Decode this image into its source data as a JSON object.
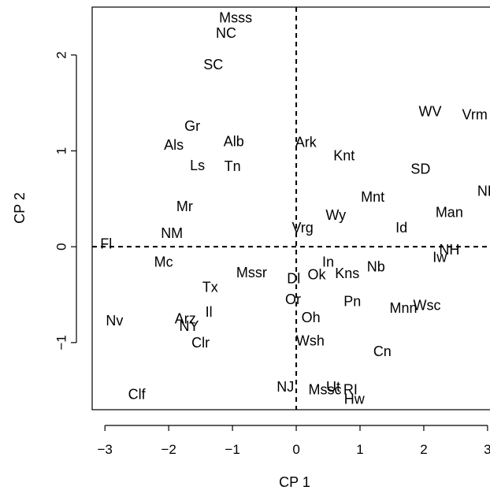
{
  "chart_data": {
    "type": "scatter",
    "title": "",
    "xlabel": "CP 1",
    "ylabel": "CP 2",
    "xlim": [
      -3.2,
      3.1
    ],
    "ylim": [
      -1.7,
      2.5
    ],
    "xticks": [
      -3,
      -2,
      -1,
      0,
      1,
      2,
      3
    ],
    "xtick_labels": [
      "−3",
      "−2",
      "−1",
      "0",
      "1",
      "2",
      "3"
    ],
    "yticks": [
      -1,
      0,
      1,
      2
    ],
    "ytick_labels": [
      "−1",
      "0",
      "1",
      "2"
    ],
    "reference_lines": {
      "x": 0,
      "y": 0,
      "style": "dashed"
    },
    "grid": false,
    "legend": "none",
    "points": [
      {
        "label": "Msss",
        "x": -0.95,
        "y": 2.39
      },
      {
        "label": "NC",
        "x": -1.1,
        "y": 2.23
      },
      {
        "label": "SC",
        "x": -1.3,
        "y": 1.9
      },
      {
        "label": "Gr",
        "x": -1.63,
        "y": 1.26
      },
      {
        "label": "Als",
        "x": -1.92,
        "y": 1.06
      },
      {
        "label": "Alb",
        "x": -0.98,
        "y": 1.1
      },
      {
        "label": "Ls",
        "x": -1.55,
        "y": 0.85
      },
      {
        "label": "Tn",
        "x": -1.0,
        "y": 0.84
      },
      {
        "label": "Ark",
        "x": 0.15,
        "y": 1.09
      },
      {
        "label": "Knt",
        "x": 0.75,
        "y": 0.95
      },
      {
        "label": "WV",
        "x": 2.1,
        "y": 1.41
      },
      {
        "label": "Vrm",
        "x": 2.8,
        "y": 1.38
      },
      {
        "label": "SD",
        "x": 1.95,
        "y": 0.81
      },
      {
        "label": "ND",
        "x": 3.0,
        "y": 0.58
      },
      {
        "label": "Mnt",
        "x": 1.2,
        "y": 0.52
      },
      {
        "label": "Man",
        "x": 2.4,
        "y": 0.36
      },
      {
        "label": "Mr",
        "x": -1.75,
        "y": 0.42
      },
      {
        "label": "Wy",
        "x": 0.62,
        "y": 0.33
      },
      {
        "label": "Vrg",
        "x": 0.1,
        "y": 0.2
      },
      {
        "label": "Id",
        "x": 1.65,
        "y": 0.2
      },
      {
        "label": "NM",
        "x": -1.95,
        "y": 0.14
      },
      {
        "label": "Fl",
        "x": -2.98,
        "y": 0.03
      },
      {
        "label": "NH",
        "x": 2.4,
        "y": -0.03
      },
      {
        "label": "Iw",
        "x": 2.25,
        "y": -0.11
      },
      {
        "label": "Mc",
        "x": -2.08,
        "y": -0.16
      },
      {
        "label": "In",
        "x": 0.5,
        "y": -0.16
      },
      {
        "label": "Nb",
        "x": 1.25,
        "y": -0.21
      },
      {
        "label": "Mssr",
        "x": -0.7,
        "y": -0.27
      },
      {
        "label": "Ok",
        "x": 0.32,
        "y": -0.29
      },
      {
        "label": "Kns",
        "x": 0.8,
        "y": -0.28
      },
      {
        "label": "Dl",
        "x": -0.04,
        "y": -0.33
      },
      {
        "label": "Tx",
        "x": -1.35,
        "y": -0.42
      },
      {
        "label": "Or",
        "x": -0.05,
        "y": -0.55
      },
      {
        "label": "Pn",
        "x": 0.88,
        "y": -0.57
      },
      {
        "label": "Mnn",
        "x": 1.68,
        "y": -0.64
      },
      {
        "label": "Wsc",
        "x": 2.05,
        "y": -0.61
      },
      {
        "label": "Il",
        "x": -1.37,
        "y": -0.68
      },
      {
        "label": "Nv",
        "x": -2.85,
        "y": -0.77
      },
      {
        "label": "Arz",
        "x": -1.74,
        "y": -0.75
      },
      {
        "label": "NY",
        "x": -1.68,
        "y": -0.83
      },
      {
        "label": "Oh",
        "x": 0.23,
        "y": -0.74
      },
      {
        "label": "Clr",
        "x": -1.5,
        "y": -1.0
      },
      {
        "label": "Wsh",
        "x": 0.22,
        "y": -0.98
      },
      {
        "label": "Cn",
        "x": 1.35,
        "y": -1.09
      },
      {
        "label": "Clf",
        "x": -2.5,
        "y": -1.54
      },
      {
        "label": "NJ",
        "x": -0.17,
        "y": -1.46
      },
      {
        "label": "Mssc",
        "x": 0.45,
        "y": -1.49
      },
      {
        "label": "Ut",
        "x": 0.58,
        "y": -1.46
      },
      {
        "label": "RI",
        "x": 0.85,
        "y": -1.49
      },
      {
        "label": "Hw",
        "x": 0.91,
        "y": -1.59
      }
    ]
  }
}
